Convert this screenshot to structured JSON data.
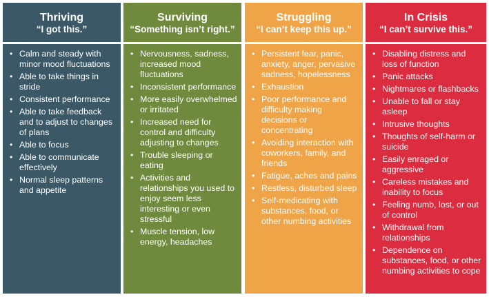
{
  "columns": [
    {
      "title": "Thriving",
      "quote": "“I got this.”",
      "color": "#3a5866",
      "items": [
        "Calm and steady with minor mood fluctuations",
        "Able to take things in stride",
        "Consistent performance",
        "Able to take feedback and to adjust to changes of plans",
        "Able to focus",
        "Able to communicate effectively",
        "Normal sleep patterns and appetite"
      ]
    },
    {
      "title": "Surviving",
      "quote": "“Something isn’t right.”",
      "color": "#6f893d",
      "items": [
        "Nervousness, sadness, increased mood fluctuations",
        "Inconsistent performance",
        "More easily overwhelmed or irritated",
        "Increased need for control and difficulty adjusting to changes",
        "Trouble sleeping or eating",
        "Activities and relationships you used to enjoy seem less interesting or even stressful",
        "Muscle tension, low energy, headaches"
      ]
    },
    {
      "title": "Struggling",
      "quote": "“I can’t keep this up.”",
      "color": "#efa447",
      "items": [
        "Persistent fear, panic, anxiety, anger, pervasive sadness, hopelessness",
        "Exhaustion",
        "Poor performance and difficulty making decisions or concentrating",
        "Avoiding interaction with coworkers, family, and friends",
        "Fatigue, aches and pains",
        "Restless, disturbed sleep",
        "Self-medicating with substances, food, or other numbing activities"
      ]
    },
    {
      "title": "In Crisis",
      "quote": "“I can’t survive this.”",
      "color": "#db2d3f",
      "items": [
        "Disabling distress and loss of function",
        "Panic attacks",
        "Nightmares or flashbacks",
        "Unable to fall or stay asleep",
        "Intrusive thoughts",
        "Thoughts of self-harm or suicide",
        "Easily enraged or aggressive",
        "Careless mistakes and inability to focus",
        "Feeling numb, lost, or out of control",
        "Withdrawal from relationships",
        "Dependence on substances, food, or other numbing activities to cope"
      ]
    }
  ]
}
